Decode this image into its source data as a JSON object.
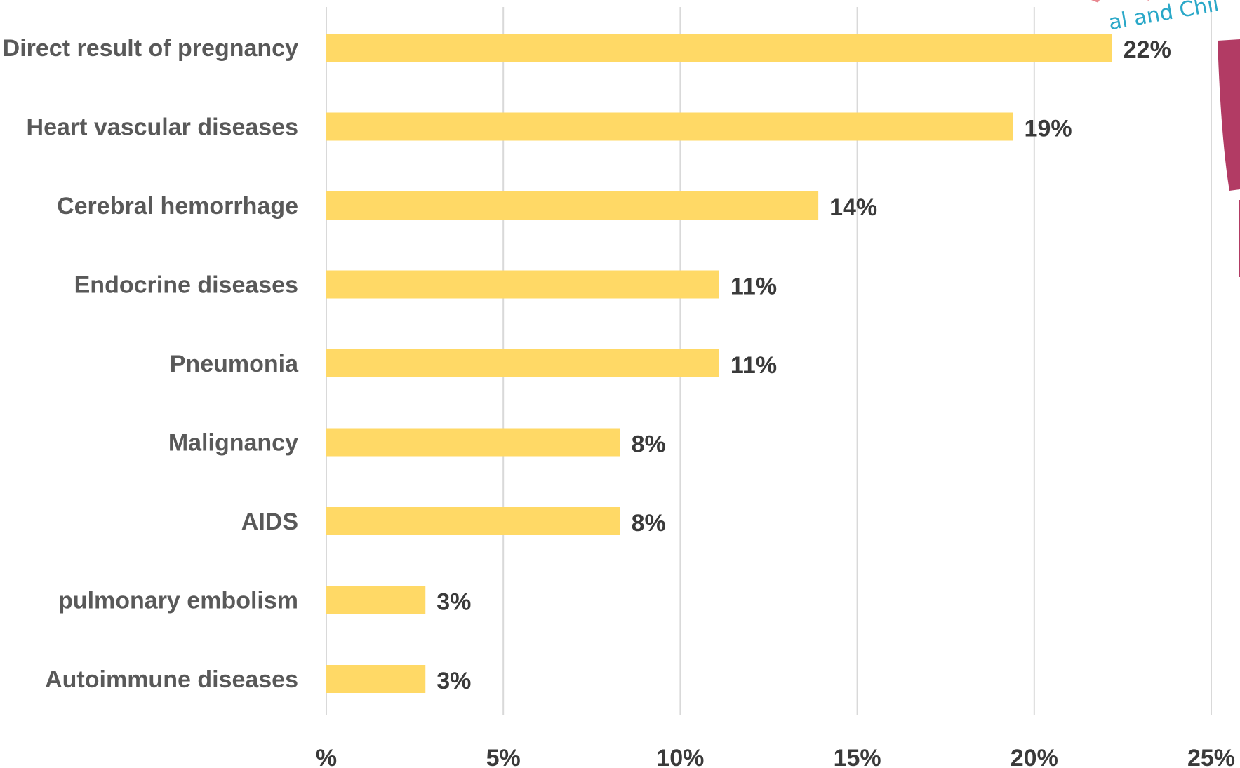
{
  "chart_data": {
    "type": "bar",
    "orientation": "horizontal",
    "categories": [
      "Direct result of pregnancy",
      "Heart vascular diseases",
      "Cerebral hemorrhage",
      "Endocrine diseases",
      "Pneumonia",
      "Malignancy",
      "AIDS",
      "pulmonary embolism",
      "Autoimmune diseases"
    ],
    "values": [
      22.2,
      19.4,
      13.9,
      11.1,
      11.1,
      8.3,
      8.3,
      2.8,
      2.8
    ],
    "value_labels": [
      "22%",
      "19%",
      "14%",
      "11%",
      "11%",
      "8%",
      "8%",
      "3%",
      "3%"
    ],
    "xlim": [
      0,
      25
    ],
    "xticks": [
      0,
      5,
      10,
      15,
      20,
      25
    ],
    "xtick_labels": [
      "%",
      "5%",
      "10%",
      "15%",
      "20%",
      "25%"
    ],
    "grid": "vertical",
    "legend": "none",
    "colors": {
      "bar": "#FFD966",
      "grid": "#D9D9D9"
    }
  },
  "logo": {
    "text": "al and Chil",
    "colors": {
      "ring": "#e8878f",
      "bar": "#b23b64"
    }
  }
}
